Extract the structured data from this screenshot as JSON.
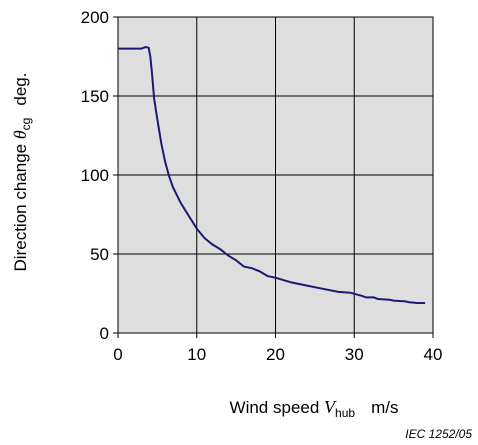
{
  "chart_data": {
    "type": "line",
    "title": "",
    "xlabel": {
      "prefix": "Wind speed ",
      "symbol": "V",
      "subscript": "hub",
      "unit": "m/s"
    },
    "ylabel": {
      "prefix": "Direction change ",
      "symbol": "θ",
      "subscript": "cg",
      "unit": "deg."
    },
    "xlim": [
      0,
      40
    ],
    "ylim": [
      0,
      200
    ],
    "xticks": [
      0,
      10,
      20,
      30,
      40
    ],
    "yticks": [
      0,
      50,
      100,
      150,
      200
    ],
    "xtick_labels": [
      "0",
      "10",
      "20",
      "30",
      "40"
    ],
    "ytick_labels": [
      "0",
      "50",
      "100",
      "150",
      "200"
    ],
    "grid": true,
    "legend": "none",
    "colors": {
      "plot_background": "#dedede",
      "line": "#1a1a73",
      "grid": "#000000"
    },
    "series": [
      {
        "x": [
          0,
          1,
          2,
          3,
          3.5,
          3.9,
          4.1,
          4.3,
          4.6,
          5,
          5.5,
          6,
          6.5,
          7,
          8,
          9,
          10,
          11,
          12,
          13,
          14,
          15,
          16,
          17,
          18,
          19,
          20,
          22,
          24,
          26,
          28,
          29.5,
          31,
          31.5,
          32.5,
          33,
          34.5,
          35,
          36.5,
          37,
          38,
          39
        ],
        "y": [
          180,
          180,
          180,
          180,
          181,
          180.5,
          175,
          165,
          148,
          135,
          120,
          108,
          99,
          92,
          82,
          74,
          66,
          60,
          56,
          53,
          49,
          46,
          42,
          41,
          39,
          36,
          35,
          32,
          30,
          28,
          26,
          25.5,
          23.5,
          22.5,
          22.5,
          21.5,
          21,
          20.5,
          20,
          19.5,
          19,
          19
        ]
      }
    ]
  },
  "credit": "IEC   1252/05"
}
